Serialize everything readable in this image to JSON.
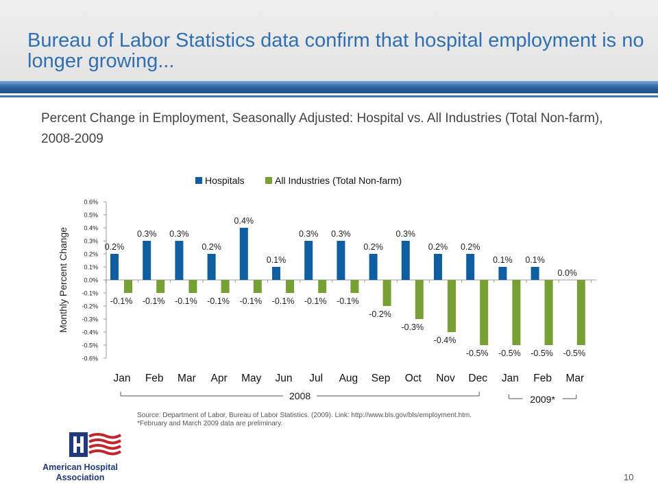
{
  "slide": {
    "title": "Bureau of Labor Statistics data confirm that hospital employment is no longer growing...",
    "subtitle": "Percent Change in Employment, Seasonally Adjusted: Hospital vs. All Industries (Total Non-farm), 2008-2009",
    "source_line1": "Source: Department of Labor, Bureau of Labor Statistics. (2009). Link: http://www.bls.gov/bls/employment.htm.",
    "source_line2": "*February and March 2009 data are preliminary.",
    "page_number": "10",
    "logo_line1": "American Hospital",
    "logo_line2": "Association"
  },
  "chart_data": {
    "type": "bar",
    "categories": [
      "Jan",
      "Feb",
      "Mar",
      "Apr",
      "May",
      "Jun",
      "Jul",
      "Aug",
      "Sep",
      "Oct",
      "Nov",
      "Dec",
      "Jan",
      "Feb",
      "Mar"
    ],
    "series": [
      {
        "name": "Hospitals",
        "color": "#0f5ea2",
        "values": [
          0.2,
          0.3,
          0.3,
          0.2,
          0.4,
          0.1,
          0.3,
          0.3,
          0.2,
          0.3,
          0.2,
          0.2,
          0.1,
          0.1,
          0.0
        ],
        "labels": [
          "0.2%",
          "0.3%",
          "0.3%",
          "0.2%",
          "0.4%",
          "0.1%",
          "0.3%",
          "0.3%",
          "0.2%",
          "0.3%",
          "0.2%",
          "0.2%",
          "0.1%",
          "0.1%",
          "0.0%"
        ]
      },
      {
        "name": "All Industries (Total Non-farm)",
        "color": "#76a034",
        "values": [
          -0.1,
          -0.1,
          -0.1,
          -0.1,
          -0.1,
          -0.1,
          -0.1,
          -0.1,
          -0.2,
          -0.3,
          -0.4,
          -0.5,
          -0.5,
          -0.5,
          -0.5
        ],
        "labels": [
          "-0.1%",
          "-0.1%",
          "-0.1%",
          "-0.1%",
          "-0.1%",
          "-0.1%",
          "-0.1%",
          "-0.1%",
          "-0.2%",
          "-0.3%",
          "-0.4%",
          "-0.5%",
          "-0.5%",
          "-0.5%",
          "-0.5%"
        ]
      }
    ],
    "ylabel": "Monthly Percent Change",
    "ylim": [
      -0.6,
      0.6
    ],
    "yticks": [
      0.6,
      0.5,
      0.4,
      0.3,
      0.2,
      0.1,
      0.0,
      -0.1,
      -0.2,
      -0.3,
      -0.4,
      -0.5,
      -0.6
    ],
    "ytick_labels": [
      "0.6%",
      "0.5%",
      "0.4%",
      "0.3%",
      "0.2%",
      "0.1%",
      "0.0%",
      "-0.1%",
      "-0.2%",
      "-0.3%",
      "-0.4%",
      "-0.5%",
      "-0.6%"
    ],
    "groups": [
      {
        "label": "2008",
        "start": 0,
        "end": 11
      },
      {
        "label": "2009*",
        "start": 12,
        "end": 14
      }
    ],
    "legend_position": "top",
    "grid": false
  }
}
